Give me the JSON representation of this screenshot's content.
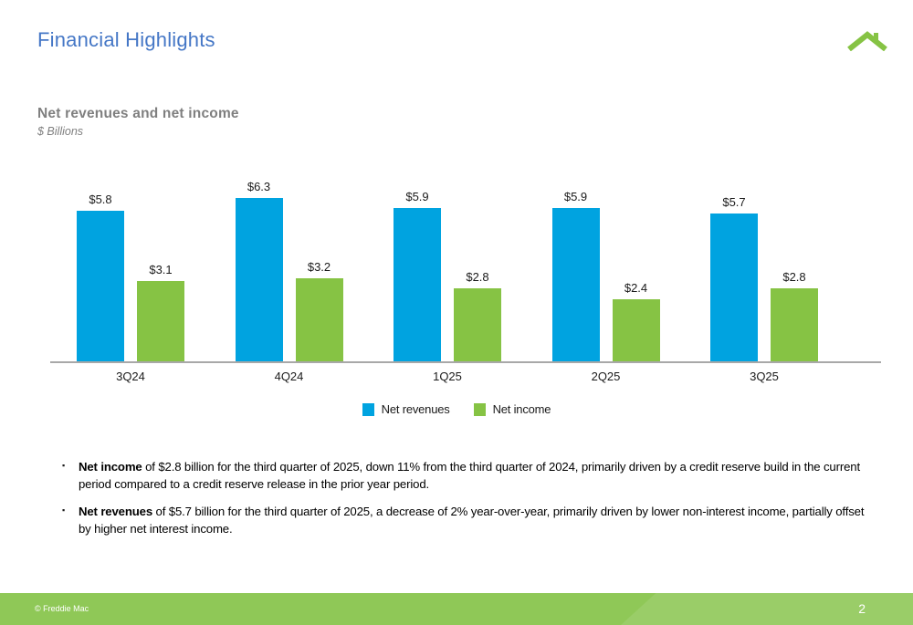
{
  "slide": {
    "title": "Financial Highlights",
    "footer_copyright": "© Freddie Mac",
    "page_number": "2"
  },
  "chart_heading": {
    "title": "Net revenues and net income",
    "unit": "$ Billions"
  },
  "chart_data": {
    "type": "bar",
    "title": "Net revenues and net income",
    "xlabel": "",
    "ylabel": "$ Billions",
    "ylim": [
      0,
      7
    ],
    "grid": false,
    "legend_position": "bottom",
    "categories": [
      "3Q24",
      "4Q24",
      "1Q25",
      "2Q25",
      "3Q25"
    ],
    "series": [
      {
        "name": "Net revenues",
        "color": "#00a3e0",
        "values": [
          5.8,
          6.3,
          5.9,
          5.9,
          5.7
        ],
        "labels": [
          "$5.8",
          "$6.3",
          "$5.9",
          "$5.9",
          "$5.7"
        ]
      },
      {
        "name": "Net income",
        "color": "#86c344",
        "values": [
          3.1,
          3.2,
          2.8,
          2.4,
          2.8
        ],
        "labels": [
          "$3.1",
          "$3.2",
          "$2.8",
          "$2.4",
          "$2.8"
        ]
      }
    ]
  },
  "bullets": [
    {
      "lead": "Net income",
      "rest": " of $2.8 billion for the third quarter of 2025, down 11% from the third quarter of 2024, primarily driven by a credit reserve build in the current period compared to a credit reserve release in the prior year period."
    },
    {
      "lead": "Net revenues",
      "rest": " of $5.7 billion for the third quarter of 2025, a decrease of 2% year-over-year, primarily driven by lower non-interest income, partially offset by higher net interest income."
    }
  ],
  "colors": {
    "title_blue": "#4577c6",
    "heading_gray": "#7f7f7f",
    "bar_blue": "#00a3e0",
    "bar_green": "#86c344",
    "footer_green": "#8fc857",
    "axis_gray": "#a8a8a8",
    "logo_green": "#86c344"
  }
}
